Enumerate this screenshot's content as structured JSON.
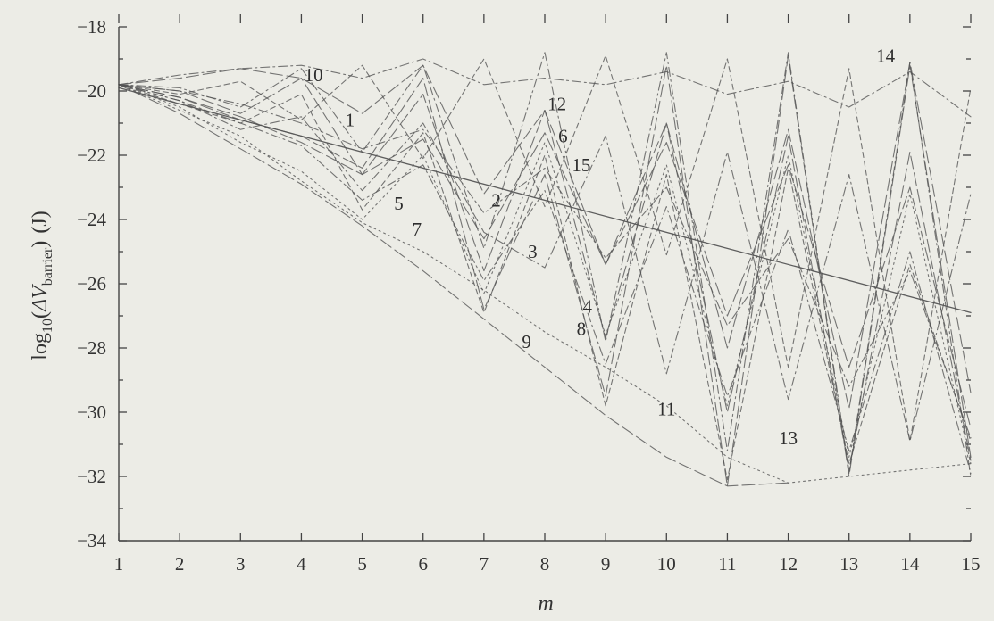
{
  "chart_data": {
    "type": "line",
    "xlabel": "m",
    "ylabel": {
      "prefix": "log",
      "sub": "10",
      "open": "(",
      "delta": "ΔV",
      "delta_sub": "barrier",
      "close": ")",
      "unit": "(J)"
    },
    "xlim": [
      1,
      15
    ],
    "ylim": [
      -34,
      -18
    ],
    "xticks": [
      1,
      2,
      3,
      4,
      5,
      6,
      7,
      8,
      9,
      10,
      11,
      12,
      13,
      14,
      15
    ],
    "yticks": [
      -18,
      -20,
      -22,
      -24,
      -26,
      -28,
      -30,
      -32,
      -34
    ],
    "grid": false,
    "colors": {
      "background": "#ecece6",
      "ink": "#555555",
      "axis": "#444444"
    },
    "series": [
      {
        "label": "1",
        "label_at": [
          4.8,
          -21.1
        ],
        "style": "solid",
        "m": [
          1,
          15
        ],
        "values": [
          -19.9,
          -26.9
        ]
      },
      {
        "label": "2",
        "label_at": [
          7.2,
          -23.6
        ],
        "style": "long-dash",
        "m": [
          1,
          2,
          3,
          4,
          5,
          6,
          7,
          8,
          9,
          10,
          11,
          12,
          13,
          14,
          15
        ],
        "values": [
          -19.8,
          -20.2,
          -20.8,
          -21.6,
          -22.6,
          -21.5,
          -24.6,
          -21.3,
          -25.4,
          -21.6,
          -27.0,
          -22.3,
          -28.6,
          -23.0,
          -30.5
        ]
      },
      {
        "label": "3",
        "label_at": [
          7.8,
          -25.2
        ],
        "style": "dash-dot",
        "m": [
          1,
          2,
          3,
          4,
          5,
          6,
          7,
          8,
          9,
          10,
          11,
          12,
          13,
          14,
          15
        ],
        "values": [
          -19.8,
          -20.3,
          -21.2,
          -20.8,
          -23.1,
          -21.0,
          -24.4,
          -25.5,
          -21.4,
          -28.8,
          -21.9,
          -29.6,
          -22.6,
          -30.9,
          -23.2
        ]
      },
      {
        "label": "4",
        "label_at": [
          8.7,
          -26.9
        ],
        "style": "dotted",
        "m": [
          1,
          2,
          3,
          4,
          5,
          6,
          7,
          8,
          9,
          10,
          11,
          12,
          13,
          14,
          15
        ],
        "values": [
          -19.8,
          -20.5,
          -21.6,
          -22.5,
          -24.0,
          -22.0,
          -26.3,
          -21.6,
          -27.6,
          -22.3,
          -29.8,
          -22.0,
          -31.4,
          -23.2,
          -31.6
        ]
      },
      {
        "label": "5",
        "label_at": [
          5.6,
          -23.7
        ],
        "style": "dash-dot",
        "m": [
          1,
          2,
          3,
          4,
          5,
          6,
          7,
          8,
          9,
          10,
          11,
          12,
          13,
          14,
          15
        ],
        "values": [
          -19.8,
          -20.3,
          -21.0,
          -21.7,
          -23.4,
          -22.3,
          -25.9,
          -23.1,
          -28.5,
          -23.6,
          -29.5,
          -24.3,
          -31.2,
          -25.0,
          -31.9
        ]
      },
      {
        "label": "6",
        "label_at": [
          8.3,
          -21.6
        ],
        "style": "long-dash",
        "m": [
          1,
          2,
          3,
          4,
          5,
          6,
          7,
          8,
          9,
          10,
          11,
          12,
          13,
          14,
          15
        ],
        "values": [
          -19.8,
          -20.0,
          -20.7,
          -19.6,
          -22.6,
          -20.1,
          -25.6,
          -20.6,
          -27.7,
          -21.0,
          -30.0,
          -21.4,
          -31.8,
          -21.9,
          -31.5
        ]
      },
      {
        "label": "7",
        "label_at": [
          5.9,
          -24.5
        ],
        "style": "short-dash",
        "m": [
          1,
          2,
          3,
          4,
          5,
          6,
          7,
          8,
          9,
          10,
          11,
          12,
          13,
          14,
          15
        ],
        "values": [
          -19.8,
          -20.4,
          -21.0,
          -20.1,
          -23.7,
          -21.3,
          -26.9,
          -22.0,
          -29.8,
          -22.6,
          -32.1,
          -22.4,
          -31.6,
          -25.4,
          -30.9
        ]
      },
      {
        "label": "8",
        "label_at": [
          8.6,
          -27.6
        ],
        "style": "dotted",
        "m": [
          1,
          2,
          3,
          4,
          5,
          6,
          7,
          8,
          9,
          10,
          11,
          12,
          13,
          14,
          15
        ],
        "values": [
          -19.8,
          -20.6,
          -21.4,
          -22.8,
          -24.1,
          -25.0,
          -26.2,
          -27.5,
          -28.6,
          -29.8,
          -31.4,
          -32.2,
          -32.0,
          -31.8,
          -31.6
        ]
      },
      {
        "label": "9",
        "label_at": [
          7.7,
          -28.0
        ],
        "style": "long-dash",
        "m": [
          1,
          2,
          3,
          4,
          5,
          6,
          7,
          8,
          9,
          10,
          11,
          12
        ],
        "values": [
          -19.8,
          -20.7,
          -21.8,
          -22.9,
          -24.2,
          -25.6,
          -27.1,
          -28.6,
          -30.1,
          -31.4,
          -32.3,
          -32.2
        ]
      },
      {
        "label": "10",
        "label_at": [
          4.2,
          -19.7
        ],
        "style": "dash-dot",
        "m": [
          1,
          2,
          3,
          4,
          5,
          6,
          7,
          8,
          9,
          10,
          11,
          12,
          13,
          14,
          15
        ],
        "values": [
          -19.8,
          -19.5,
          -19.3,
          -19.2,
          -19.6,
          -19.0,
          -19.8,
          -19.6,
          -19.8,
          -19.4,
          -20.1,
          -19.7,
          -20.5,
          -19.4,
          -20.8
        ]
      },
      {
        "label": "11",
        "label_at": [
          10.0,
          -30.1
        ],
        "style": "short-dash",
        "m": [
          1,
          2,
          3,
          4,
          5,
          6,
          7,
          8,
          9,
          10,
          11,
          12,
          13,
          14,
          15
        ],
        "values": [
          -19.8,
          -20.1,
          -19.7,
          -20.9,
          -19.2,
          -22.1,
          -19.0,
          -23.6,
          -18.9,
          -25.1,
          -19.0,
          -28.6,
          -19.3,
          -30.9,
          -19.9
        ]
      },
      {
        "label": "12",
        "label_at": [
          8.2,
          -20.6
        ],
        "style": "dash-dot",
        "m": [
          1,
          2,
          3,
          4,
          5,
          6,
          7,
          8,
          9,
          10,
          11,
          12,
          13,
          14,
          15
        ],
        "values": [
          -19.8,
          -19.9,
          -20.5,
          -19.3,
          -21.9,
          -19.2,
          -24.9,
          -18.8,
          -27.8,
          -18.8,
          -31.2,
          -18.8,
          -31.9,
          -19.1,
          -32.0
        ]
      },
      {
        "label": "13",
        "label_at": [
          12.0,
          -31.0
        ],
        "style": "long-dash",
        "m": [
          1,
          2,
          3,
          4,
          5,
          6,
          7,
          8,
          9,
          10,
          11,
          12,
          13,
          14,
          15
        ],
        "values": [
          -19.8,
          -20.2,
          -20.9,
          -21.4,
          -22.4,
          -19.6,
          -26.8,
          -22.6,
          -29.5,
          -19.2,
          -32.3,
          -18.9,
          -32.0,
          -19.2,
          -31.4
        ]
      },
      {
        "label": "14",
        "label_at": [
          13.6,
          -19.1
        ],
        "style": "long-dash",
        "m": [
          1,
          2,
          3,
          4,
          5,
          6,
          7,
          8,
          9,
          10,
          11,
          12,
          13,
          14,
          15
        ],
        "values": [
          -19.8,
          -19.6,
          -19.3,
          -19.6,
          -20.7,
          -19.2,
          -23.2,
          -20.6,
          -25.4,
          -21.0,
          -28.0,
          -21.2,
          -29.9,
          -19.1,
          -29.4
        ]
      },
      {
        "label": "15",
        "label_at": [
          8.6,
          -22.5
        ],
        "style": "dash-dot",
        "m": [
          1,
          2,
          3,
          4,
          5,
          6,
          7,
          8,
          9,
          10,
          11,
          12,
          13,
          14,
          15
        ],
        "values": [
          -19.8,
          -20.0,
          -20.4,
          -21.0,
          -21.8,
          -21.2,
          -23.8,
          -22.4,
          -25.2,
          -23.0,
          -27.3,
          -24.6,
          -29.2,
          -25.6,
          -30.8
        ]
      }
    ]
  }
}
